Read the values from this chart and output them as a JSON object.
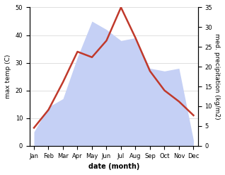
{
  "months": [
    "Jan",
    "Feb",
    "Mar",
    "Apr",
    "May",
    "Jun",
    "Jul",
    "Aug",
    "Sep",
    "Oct",
    "Nov",
    "Dec"
  ],
  "temperature": [
    6.5,
    13,
    23,
    34,
    32,
    38,
    50,
    39,
    27,
    20,
    16,
    11
  ],
  "precipitation_left_scale": [
    5,
    14,
    17,
    32,
    45,
    42,
    38,
    39,
    28,
    27,
    28,
    2
  ],
  "precip_fill_color": "#c5d0f5",
  "temp_color": "#c0392b",
  "temp_ylim": [
    0,
    50
  ],
  "precip_ylim": [
    0,
    35
  ],
  "temp_yticks": [
    0,
    10,
    20,
    30,
    40,
    50
  ],
  "precip_yticks": [
    0,
    5,
    10,
    15,
    20,
    25,
    30,
    35
  ],
  "xlabel": "date (month)",
  "ylabel_left": "max temp (C)",
  "ylabel_right": "med. precipitation (kg/m2)",
  "background_color": "#ffffff"
}
